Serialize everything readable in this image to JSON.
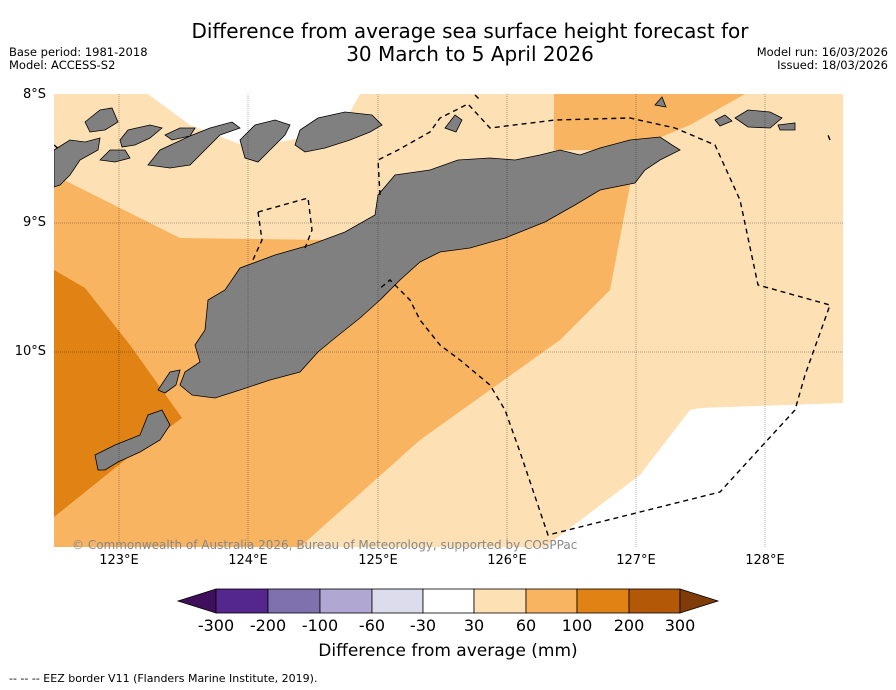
{
  "title_line1": "Difference from average sea surface height forecast for",
  "title_line2": "30 March to 5 April 2026",
  "meta_left": {
    "base_period": "Base period: 1981-2018",
    "model": "Model: ACCESS-S2"
  },
  "meta_right": {
    "model_run": "Model run: 16/03/2026",
    "issued": "Issued: 18/03/2026"
  },
  "lat_labels": [
    "8°S",
    "9°S",
    "10°S"
  ],
  "lon_labels": [
    "123°E",
    "124°E",
    "125°E",
    "126°E",
    "127°E",
    "128°E"
  ],
  "copyright": "© Commonwealth of Australia 2026, Bureau of Meteorology, supported by COSPPac",
  "colorbar": {
    "ticks": [
      "-300",
      "-200",
      "-100",
      "-60",
      "-30",
      "30",
      "60",
      "100",
      "200",
      "300"
    ],
    "title": "Difference from average (mm)",
    "colors": [
      "#3f0f5c",
      "#54278f",
      "#7f70ae",
      "#b0a8d2",
      "#dcdcec",
      "#ffffff",
      "#fde0b4",
      "#f8b460",
      "#e08214",
      "#b35806",
      "#7f3b08"
    ]
  },
  "footer": "--  --  -- EEZ border V11 (Flanders Marine Institute, 2019).",
  "colors": {
    "band_30_60": "#fde0b4",
    "band_60_100": "#f8b460",
    "band_100_200": "#e08214",
    "land": "#808080"
  }
}
